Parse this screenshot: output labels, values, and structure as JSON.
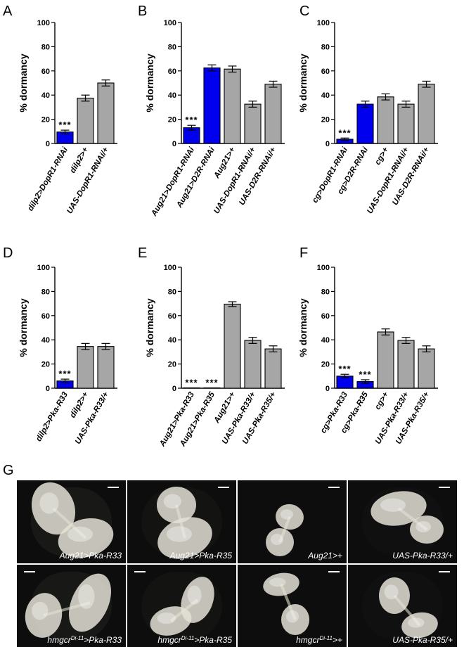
{
  "chart_data": [
    {
      "panel": "A",
      "type": "bar",
      "ylabel": "% dormancy",
      "ylim": [
        0,
        100
      ],
      "yticks": [
        "0",
        "20",
        "40",
        "60",
        "80",
        "100"
      ],
      "categories": [
        "dilp2>DopR1-RNAi",
        "dilp2>+",
        "UAS-DopR1-RNAi/+"
      ],
      "values": [
        9.5,
        37.5,
        50
      ],
      "errors": [
        1.5,
        2.5,
        2.5
      ],
      "colors": [
        "#0000ee",
        "#a6a6a6",
        "#a6a6a6"
      ],
      "annotations": [
        "***",
        "",
        ""
      ]
    },
    {
      "panel": "B",
      "type": "bar",
      "ylabel": "% dormancy",
      "ylim": [
        0,
        100
      ],
      "yticks": [
        "0",
        "20",
        "40",
        "60",
        "80",
        "100"
      ],
      "categories": [
        "Aug21>DopR1-RNAi",
        "Aug21>D2R-RNAi",
        "Aug21>+",
        "UAS-DopR1-RNAi/+",
        "UAS-D2R-RNAi/+"
      ],
      "values": [
        13,
        62.5,
        61.5,
        32.5,
        49
      ],
      "errors": [
        2,
        2.5,
        2.5,
        2.5,
        2.5
      ],
      "colors": [
        "#0000ee",
        "#0000ee",
        "#a6a6a6",
        "#a6a6a6",
        "#a6a6a6"
      ],
      "annotations": [
        "***",
        "",
        "",
        "",
        ""
      ]
    },
    {
      "panel": "C",
      "type": "bar",
      "ylabel": "% dormancy",
      "ylim": [
        0,
        100
      ],
      "yticks": [
        "0",
        "20",
        "40",
        "60",
        "80",
        "100"
      ],
      "categories": [
        "cg>DopR1-RNAi",
        "cg>D2R-RNAi",
        "cg>+",
        "UAS-DopR1-RNAi/+",
        "UAS-D2R-RNAi/+"
      ],
      "values": [
        3.5,
        32.5,
        38.5,
        32.5,
        49
      ],
      "errors": [
        1,
        2.5,
        2.5,
        2.5,
        2.5
      ],
      "colors": [
        "#0000ee",
        "#0000ee",
        "#a6a6a6",
        "#a6a6a6",
        "#a6a6a6"
      ],
      "annotations": [
        "***",
        "",
        "",
        "",
        ""
      ]
    },
    {
      "panel": "D",
      "type": "bar",
      "ylabel": "% dormancy",
      "ylim": [
        0,
        100
      ],
      "yticks": [
        "0",
        "20",
        "40",
        "60",
        "80",
        "100"
      ],
      "categories": [
        "dilp2>Pka-R33",
        "dilp2>+",
        "UAS-Pka-R33/+"
      ],
      "values": [
        6,
        34.5,
        34.5
      ],
      "errors": [
        1.5,
        2.5,
        2.5
      ],
      "colors": [
        "#0000ee",
        "#a6a6a6",
        "#a6a6a6"
      ],
      "annotations": [
        "***",
        "",
        ""
      ]
    },
    {
      "panel": "E",
      "type": "bar",
      "ylabel": "% dormancy",
      "ylim": [
        0,
        100
      ],
      "yticks": [
        "0",
        "20",
        "40",
        "60",
        "80",
        "100"
      ],
      "categories": [
        "Aug21>Pka-R33",
        "Aug21>Pka-R35",
        "Aug21>+",
        "UAS-Pka-R33/+",
        "UAS-Pka-R35/+"
      ],
      "values": [
        0.3,
        0.3,
        69.5,
        39.5,
        32.5
      ],
      "errors": [
        0,
        0,
        2,
        2.5,
        2.5
      ],
      "colors": [
        "#0000ee",
        "#0000ee",
        "#a6a6a6",
        "#a6a6a6",
        "#a6a6a6"
      ],
      "annotations": [
        "***",
        "***",
        "",
        "",
        ""
      ]
    },
    {
      "panel": "F",
      "type": "bar",
      "ylabel": "% dormancy",
      "ylim": [
        0,
        100
      ],
      "yticks": [
        "0",
        "20",
        "40",
        "60",
        "80",
        "100"
      ],
      "categories": [
        "cg>Pka-R33",
        "cg>Pka-R35",
        "cg>+",
        "UAS-Pka-R33/+",
        "UAS-Pka-R35/+"
      ],
      "values": [
        10,
        5.5,
        46.5,
        39.5,
        32.5
      ],
      "errors": [
        1.5,
        1.5,
        2.5,
        2.5,
        2.5
      ],
      "colors": [
        "#0000ee",
        "#0000ee",
        "#a6a6a6",
        "#a6a6a6",
        "#a6a6a6"
      ],
      "annotations": [
        "***",
        "***",
        "",
        "",
        ""
      ]
    }
  ],
  "panel_g": {
    "letter": "G",
    "photos": [
      {
        "label": "Aug21>Pka-R33",
        "sup": ""
      },
      {
        "label": "Aug21>Pka-R35",
        "sup": ""
      },
      {
        "label": "Aug21>+",
        "sup": ""
      },
      {
        "label": "UAS-Pka-R33/+",
        "sup": ""
      },
      {
        "label": "hmgcr>Pka-R33",
        "prefix": "hmgcr",
        "sup": "Di-11",
        "suffix": ">Pka-R33"
      },
      {
        "label": "hmgcr>Pka-R35",
        "prefix": "hmgcr",
        "sup": "Di-11",
        "suffix": ">Pka-R35"
      },
      {
        "label": "hmgcr>+",
        "prefix": "hmgcr",
        "sup": "Di-11",
        "suffix": ">+"
      },
      {
        "label": "UAS-Pka-R35/+",
        "sup": ""
      }
    ],
    "colors": {
      "background": "#0d0d0d",
      "organ": "#e4e2d6",
      "scalebar": "#ffffff"
    }
  }
}
